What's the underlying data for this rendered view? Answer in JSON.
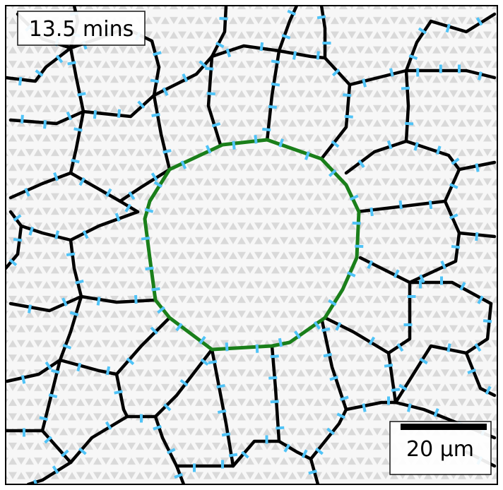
{
  "time_label": "13.5 mins",
  "scale_bar": {
    "label": "20 μm"
  },
  "colors": {
    "cell_edge": "#000000",
    "wound_edge": "#1a7f1a",
    "marker": "#4fc3f7",
    "background": "#ffffff",
    "pattern": "#d9d9d9",
    "frame": "#000000"
  },
  "icons": {
    "pattern": "triangle-lattice-pattern"
  }
}
